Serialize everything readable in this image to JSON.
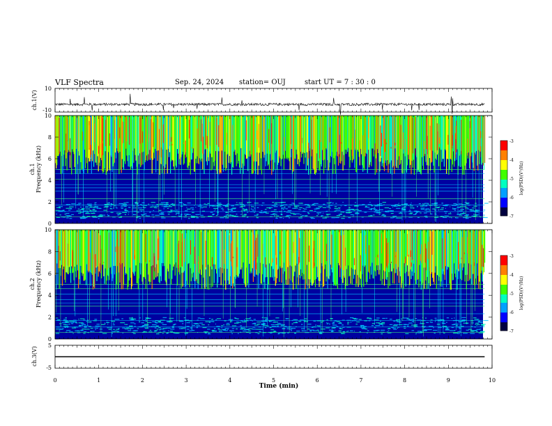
{
  "header": {
    "title": "VLF Spectra",
    "date": "Sep. 24, 2024",
    "station": "station= OUJ",
    "start": "start  UT  =   7  : 30 : 0"
  },
  "chart_data": [
    {
      "type": "line",
      "panel": "ch1-waveform",
      "ylabel": "ch.1(V)",
      "ylim": [
        -10,
        10
      ],
      "ytick_labels": [
        "10",
        "-10"
      ],
      "baseline": -3.5,
      "xlim": [
        0,
        10
      ],
      "data_extent_min": 9.83
    },
    {
      "type": "heatmap",
      "panel": "ch1-spectrogram",
      "ylabel_channel": "ch.1",
      "ylabel": "Frequency (kHz)",
      "ylim": [
        0,
        10
      ],
      "ytick_labels": [
        "0",
        "2",
        "4",
        "6",
        "8",
        "10"
      ],
      "xlim": [
        0,
        10
      ],
      "colorbar": {
        "label": "log(PSD)(V²/Hz)",
        "range": [
          -7,
          -3
        ],
        "tick_labels": [
          "-3",
          "-4",
          "-5",
          "-6",
          "-7"
        ],
        "colors": [
          "#000040",
          "#0000ff",
          "#00a0ff",
          "#00ffc0",
          "#40ff00",
          "#ffff00",
          "#ff8000",
          "#ff0000"
        ]
      }
    },
    {
      "type": "heatmap",
      "panel": "ch2-spectrogram",
      "ylabel_channel": "ch.2",
      "ylabel": "Frequency (kHz)",
      "ylim": [
        0,
        10
      ],
      "ytick_labels": [
        "0",
        "2",
        "4",
        "6",
        "8",
        "10"
      ],
      "xlim": [
        0,
        10
      ],
      "colorbar": {
        "label": "log(PSD)(V²/Hz)",
        "range": [
          -7,
          -3
        ],
        "tick_labels": [
          "-3",
          "-4",
          "-5",
          "-6",
          "-7"
        ],
        "colors": [
          "#000040",
          "#0000ff",
          "#00a0ff",
          "#00ffc0",
          "#40ff00",
          "#ffff00",
          "#ff8000",
          "#ff0000"
        ]
      }
    },
    {
      "type": "line",
      "panel": "ch3-waveform",
      "ylabel": "ch.3(V)",
      "ylim": [
        -5,
        5
      ],
      "ytick_labels": [
        "5",
        "-5"
      ],
      "baseline": 0,
      "xlim": [
        0,
        10
      ],
      "data_extent_min": 9.83
    }
  ],
  "xaxis": {
    "label": "Time (min)",
    "tick_labels": [
      "0",
      "1",
      "2",
      "3",
      "4",
      "5",
      "6",
      "7",
      "8",
      "9",
      "10"
    ]
  }
}
